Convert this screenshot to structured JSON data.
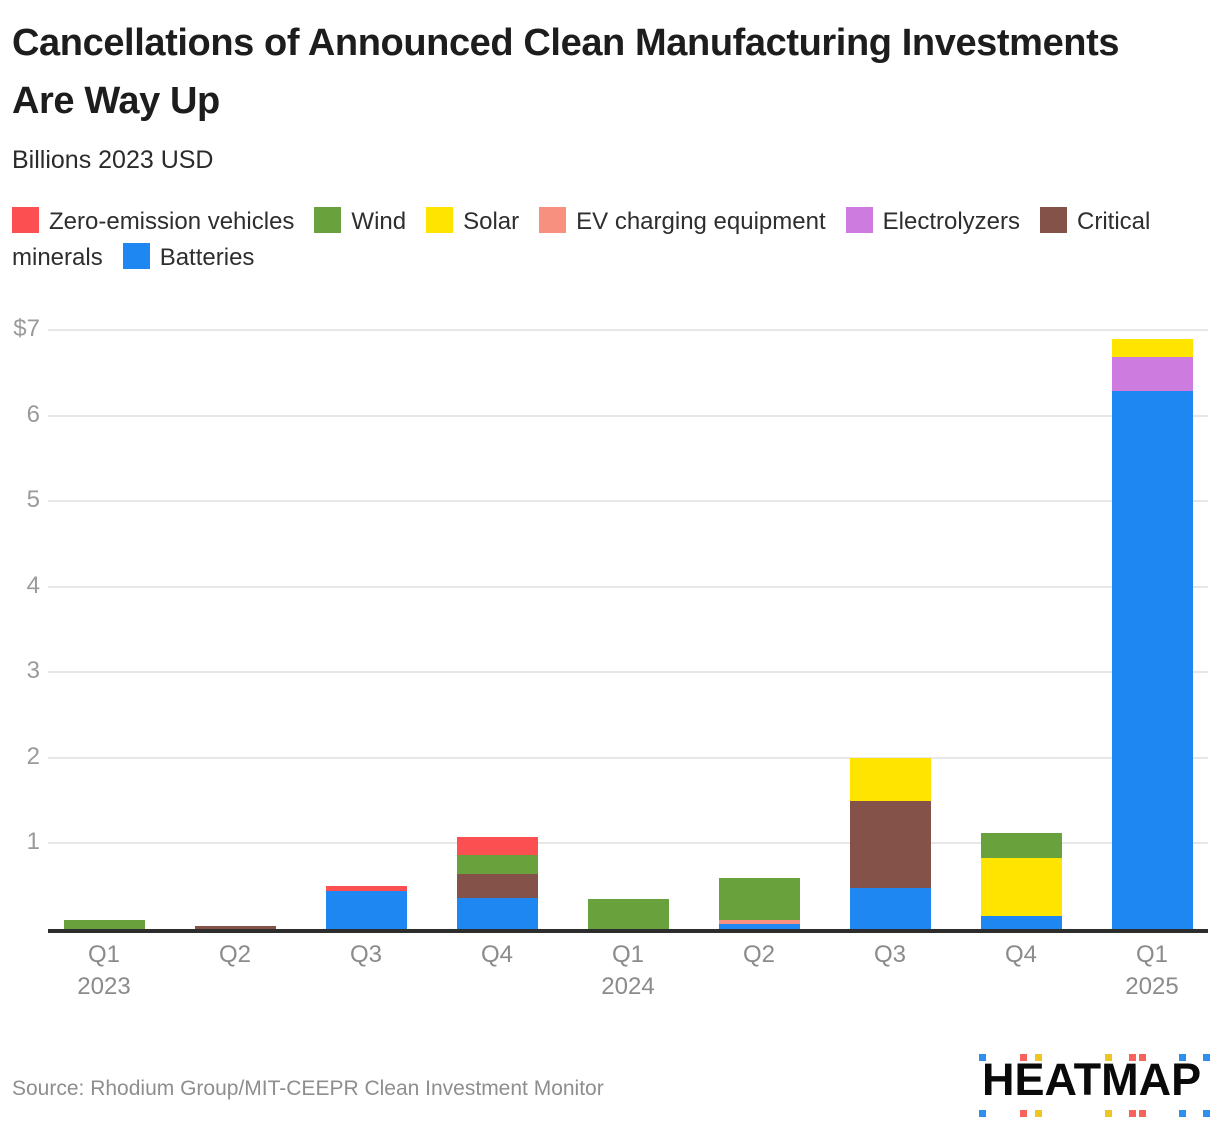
{
  "title": "Cancellations of Announced Clean Manufacturing Investments Are Way Up",
  "subtitle": "Billions 2023 USD",
  "legend": [
    {
      "label": "Zero-emission vehicles",
      "color": "#fc4f52"
    },
    {
      "label": "Wind",
      "color": "#69a13c"
    },
    {
      "label": "Solar",
      "color": "#ffe400"
    },
    {
      "label": "EV charging equipment",
      "color": "#f89080"
    },
    {
      "label": "Electrolyzers",
      "color": "#cd7bde"
    },
    {
      "label": "Critical minerals",
      "color": "#855249"
    },
    {
      "label": "Batteries",
      "color": "#1f87f2"
    }
  ],
  "chart_data": {
    "type": "bar",
    "stacked": true,
    "title": "Cancellations of Announced Clean Manufacturing Investments Are Way Up",
    "ylabel": "Billions 2023 USD",
    "ylim": [
      0,
      7
    ],
    "grid": true,
    "legend_position": "top",
    "categories": [
      "Q1",
      "Q2",
      "Q3",
      "Q4",
      "Q1",
      "Q2",
      "Q3",
      "Q4",
      "Q1"
    ],
    "year_labels": [
      {
        "index": 0,
        "year": "2023"
      },
      {
        "index": 4,
        "year": "2024"
      },
      {
        "index": 8,
        "year": "2025"
      }
    ],
    "yticks": [
      {
        "value": 7,
        "label": "$7"
      },
      {
        "value": 6,
        "label": "6"
      },
      {
        "value": 5,
        "label": "5"
      },
      {
        "value": 4,
        "label": "4"
      },
      {
        "value": 3,
        "label": "3"
      },
      {
        "value": 2,
        "label": "2"
      },
      {
        "value": 1,
        "label": "1"
      }
    ],
    "series": [
      {
        "name": "Batteries",
        "color": "#1f87f2",
        "values": [
          0,
          0,
          0.44,
          0.36,
          0,
          0.06,
          0.48,
          0.15,
          6.29
        ]
      },
      {
        "name": "Critical minerals",
        "color": "#855249",
        "values": [
          0,
          0.03,
          0,
          0.28,
          0,
          0,
          1.02,
          0,
          0
        ]
      },
      {
        "name": "EV charging equipment",
        "color": "#f89080",
        "values": [
          0,
          0,
          0,
          0,
          0,
          0.04,
          0,
          0,
          0
        ]
      },
      {
        "name": "Electrolyzers",
        "color": "#cd7bde",
        "values": [
          0,
          0,
          0,
          0,
          0,
          0,
          0,
          0,
          0.4
        ]
      },
      {
        "name": "Solar",
        "color": "#ffe400",
        "values": [
          0,
          0,
          0,
          0,
          0,
          0,
          0.5,
          0.68,
          0.21
        ]
      },
      {
        "name": "Wind",
        "color": "#69a13c",
        "values": [
          0.1,
          0,
          0,
          0.22,
          0.35,
          0.5,
          0,
          0.29,
          0
        ]
      },
      {
        "name": "Zero-emission vehicles",
        "color": "#fc4f52",
        "values": [
          0,
          0,
          0.06,
          0.22,
          0,
          0,
          0,
          0,
          0
        ]
      }
    ]
  },
  "source": "Source: Rhodium Group/MIT-CEEPR Clean Investment Monitor",
  "logo": {
    "text": "HEATMAP",
    "square_colors": [
      "#2e8fef",
      "#f9625c",
      "#efc621",
      "#efc621",
      "#f9625c",
      "#f9625c",
      "#2e8fef",
      "#2e8fef"
    ]
  }
}
